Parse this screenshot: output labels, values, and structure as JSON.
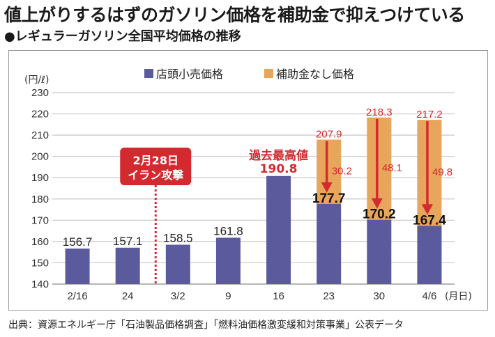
{
  "header": {
    "title": "値上がりするはずのガソリン価格を補助金で抑えつけている",
    "subtitle": "●レギュラーガソリン全国平均価格の推移"
  },
  "source": "出典：資源エネルギー庁「石油製品価格調査」「燃料油価格激変緩和対策事業」公表データ",
  "colors": {
    "retail": "#5b5a9c",
    "subsidy": "#e8a55c",
    "accent_red": "#d32a2f",
    "grid": "#c8c8c8"
  },
  "chart_data": {
    "type": "bar",
    "title": "レギュラーガソリン全国平均価格の推移",
    "ylabel": "(円/ℓ)",
    "xlabel": "(月日)",
    "ylim": [
      140,
      230
    ],
    "yticks": [
      140,
      150,
      160,
      170,
      180,
      190,
      200,
      210,
      220,
      230
    ],
    "grid": true,
    "legend_position": "top-center",
    "categories": [
      "2/16",
      "24",
      "3/2",
      "9",
      "16",
      "23",
      "30",
      "4/6"
    ],
    "series": [
      {
        "name": "店頭小売価格",
        "color": "#5b5a9c",
        "values": [
          156.7,
          157.1,
          158.5,
          161.8,
          190.8,
          177.7,
          170.2,
          167.4
        ]
      },
      {
        "name": "補助金なし価格",
        "color": "#e8a55c",
        "values": [
          null,
          null,
          null,
          null,
          null,
          207.9,
          218.3,
          217.2
        ]
      }
    ],
    "subsidy_amounts": [
      null,
      null,
      null,
      null,
      null,
      30.2,
      48.1,
      49.8
    ],
    "annotations": {
      "event_line_label_line1": "2月28日",
      "event_line_label_line2": "イラン攻撃",
      "record_label": "過去最高値",
      "record_value": "190.8"
    }
  }
}
